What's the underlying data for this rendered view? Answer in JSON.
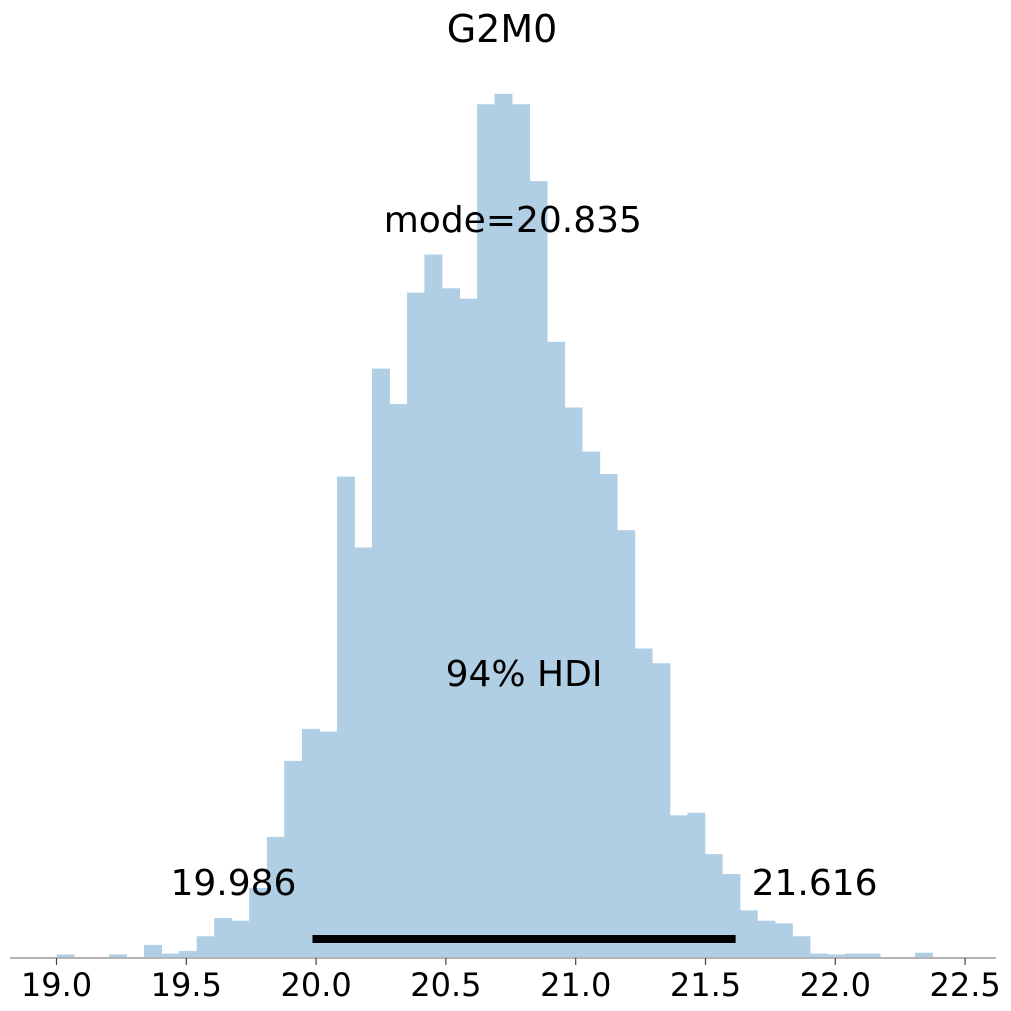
{
  "chart_data": {
    "type": "bar",
    "title": "G2M0",
    "xlabel": "",
    "ylabel": "",
    "xlim": [
      18.83,
      22.62
    ],
    "ylim": [
      0,
      1.0
    ],
    "grid": false,
    "bar_color": "#b0cfe4",
    "bin_width": 0.0675,
    "x": [
      19.034,
      19.101,
      19.169,
      19.236,
      19.304,
      19.371,
      19.439,
      19.506,
      19.574,
      19.641,
      19.709,
      19.776,
      19.844,
      19.911,
      19.979,
      20.046,
      20.114,
      20.181,
      20.249,
      20.316,
      20.384,
      20.451,
      20.519,
      20.586,
      20.654,
      20.721,
      20.789,
      20.856,
      20.924,
      20.991,
      21.059,
      21.126,
      21.194,
      21.261,
      21.329,
      21.396,
      21.464,
      21.531,
      21.599,
      21.666,
      21.734,
      21.801,
      21.869,
      21.936,
      22.004,
      22.071,
      22.139,
      22.206,
      22.274,
      22.341,
      22.409
    ],
    "values": [
      0.003,
      0.0,
      0.0,
      0.003,
      0.0,
      0.014,
      0.004,
      0.007,
      0.024,
      0.045,
      0.042,
      0.08,
      0.139,
      0.227,
      0.264,
      0.261,
      0.556,
      0.474,
      0.681,
      0.64,
      0.769,
      0.813,
      0.774,
      0.762,
      0.987,
      0.999,
      0.987,
      0.898,
      0.712,
      0.636,
      0.585,
      0.559,
      0.494,
      0.357,
      0.34,
      0.164,
      0.167,
      0.119,
      0.096,
      0.054,
      0.042,
      0.039,
      0.024,
      0.004,
      0.003,
      0.004,
      0.004,
      0.0,
      0.0,
      0.005,
      0.0
    ],
    "xticks": [
      19.0,
      19.5,
      20.0,
      20.5,
      21.0,
      21.5,
      22.0,
      22.5
    ],
    "xtick_labels": [
      "19.0",
      "19.5",
      "20.0",
      "20.5",
      "21.0",
      "21.5",
      "22.0",
      "22.5"
    ],
    "hdi": {
      "low": 19.986,
      "high": 21.616,
      "low_label": "19.986",
      "high_label": "21.616",
      "label": "94% HDI"
    },
    "mode": {
      "value": 20.835,
      "label": "mode=20.835"
    }
  }
}
